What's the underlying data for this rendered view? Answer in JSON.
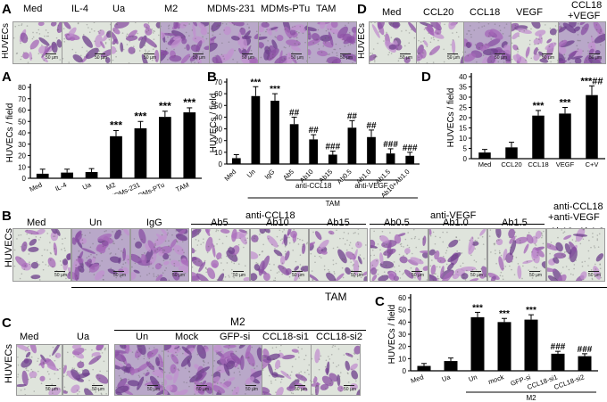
{
  "panel_letters": {
    "a_top": "A",
    "a_chart": "A",
    "b_chart": "B",
    "d_top": "D",
    "d_chart": "D",
    "b_photos": "B",
    "c_photos": "C",
    "c_chart": "C"
  },
  "row_label": "HUVECs",
  "photo_labels": {
    "a_top": [
      "Med",
      "IL-4",
      "Ua",
      "M2",
      "MDMs-231",
      "MDMs-PTu",
      "TAM"
    ],
    "d_top": [
      "Med",
      "CCL20",
      "CCL18",
      "VEGF"
    ],
    "d_top_combo": [
      "CCL18",
      "+VEGF"
    ],
    "b_row": [
      "Med",
      "Un",
      "IgG",
      "Ab5",
      "Ab10",
      "Ab15",
      "Ab0.5",
      "Ab1.0",
      "Ab1.5"
    ],
    "b_row_combo": "Ab10+Ab1.0",
    "c_row": [
      "Med",
      "Ua",
      "Un",
      "Mock",
      "GFP-si",
      "CCL18-si1",
      "CCL18-si2"
    ]
  },
  "group_labels": {
    "b_anti_ccl18": "anti-CCL18",
    "b_anti_vegf": "anti-VEGF",
    "b_combo_1": "anti-CCL18",
    "b_combo_2": "+anti-VEGF",
    "b_tam": "TAM",
    "c_m2": "M2"
  },
  "scale_bar": "50 µm",
  "chart_data": [
    {
      "id": "A",
      "type": "bar",
      "ylabel": "HUVECs / field",
      "ylim": [
        0,
        80
      ],
      "yticks": [
        0,
        10,
        20,
        30,
        40,
        50,
        60,
        70,
        80
      ],
      "categories": [
        "Med",
        "IL-4",
        "Ua",
        "M2",
        "MDMs-231",
        "MDMs-PTu",
        "TAM"
      ],
      "values": [
        4,
        5,
        5.5,
        37,
        44,
        54,
        58
      ],
      "errors": [
        4,
        3,
        3,
        5,
        6,
        5,
        4
      ],
      "annotations": [
        "",
        "",
        "",
        "***",
        "***",
        "***",
        "***"
      ]
    },
    {
      "id": "B",
      "type": "bar",
      "ylabel": "HUVECs / field",
      "ylim": [
        0,
        70
      ],
      "yticks": [
        0,
        10,
        20,
        30,
        40,
        50,
        60,
        70
      ],
      "categories": [
        "Med",
        "Un",
        "IgG",
        "Ab5",
        "Ab10",
        "Ab15",
        "Ab0.5",
        "Ab1.0",
        "Ab1.5",
        "Ab10+Ab1.0"
      ],
      "values": [
        5,
        58,
        54,
        34,
        21,
        8,
        31,
        23,
        9,
        7
      ],
      "errors": [
        3,
        8,
        6,
        6,
        4,
        3,
        6,
        6,
        4,
        3
      ],
      "annotations": [
        "",
        "***",
        "***",
        "##",
        "##",
        "###",
        "##",
        "##",
        "###",
        "###"
      ],
      "groups": [
        {
          "label": "anti-CCL18",
          "from": 3,
          "to": 5
        },
        {
          "label": "anti-VEGF",
          "from": 6,
          "to": 8
        },
        {
          "label": "TAM",
          "from": 1,
          "to": 9
        }
      ]
    },
    {
      "id": "D",
      "type": "bar",
      "ylabel": "HUVECs / field",
      "ylim": [
        0,
        40
      ],
      "yticks": [
        0,
        5,
        10,
        15,
        20,
        25,
        30,
        35,
        40
      ],
      "categories": [
        "Med",
        "CCL20",
        "CCL18",
        "VEGF",
        "C+V"
      ],
      "values": [
        3,
        5.5,
        21,
        22,
        31
      ],
      "errors": [
        1.5,
        2.5,
        2.5,
        3,
        4.5
      ],
      "annotations": [
        "",
        "",
        "***",
        "***",
        "***##"
      ]
    },
    {
      "id": "C",
      "type": "bar",
      "ylabel": "HUVECs / field",
      "ylim": [
        0,
        60
      ],
      "yticks": [
        0,
        10,
        20,
        30,
        40,
        50,
        60
      ],
      "categories": [
        "Med",
        "Ua",
        "Un",
        "mock",
        "GFP-si",
        "CCL18-si1",
        "CCL18-si2"
      ],
      "values": [
        4,
        8,
        44,
        40,
        42,
        14,
        12
      ],
      "errors": [
        2,
        2.5,
        4,
        3,
        4,
        2,
        2
      ],
      "annotations": [
        "",
        "",
        "***",
        "***",
        "***",
        "###",
        "###"
      ],
      "groups": [
        {
          "label": "M2",
          "from": 2,
          "to": 6
        }
      ]
    }
  ]
}
